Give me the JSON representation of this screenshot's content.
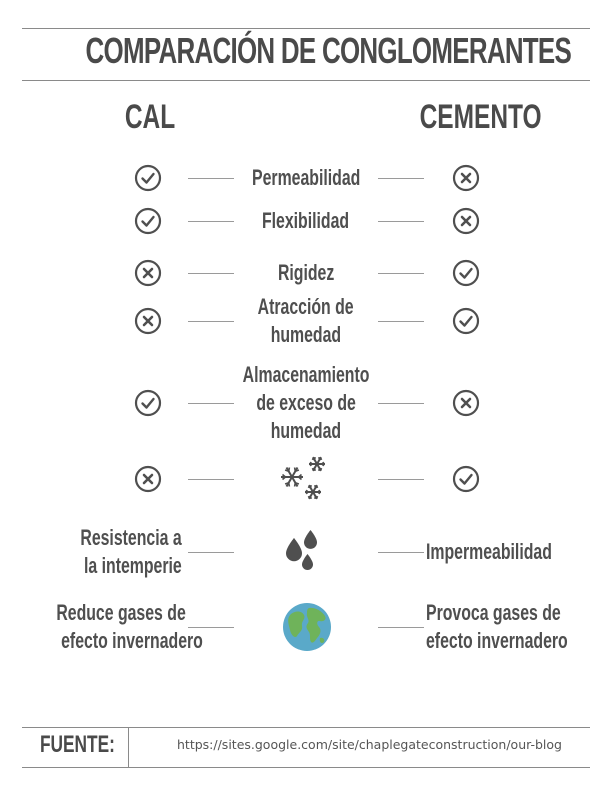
{
  "title": "COMPARACIÓN DE CONGLOMERANTES",
  "columns": {
    "left": "CAL",
    "right": "CEMENTO"
  },
  "rows": [
    {
      "label": "Permeabilidad",
      "cal": "check",
      "cemento": "cross"
    },
    {
      "label": "Flexibilidad",
      "cal": "check",
      "cemento": "cross"
    },
    {
      "label": "Rigidez",
      "cal": "cross",
      "cemento": "check"
    },
    {
      "label": "Atracción de humedad",
      "label_lines": [
        "Atracción de",
        "humedad"
      ],
      "cal": "cross",
      "cemento": "check"
    },
    {
      "label": "Almacenamiento de exceso de humedad",
      "label_lines": [
        "Almacenamiento",
        "de exceso de",
        "humedad"
      ],
      "cal": "check",
      "cemento": "cross"
    },
    {
      "icon": "snowflakes-icon",
      "cal": "cross",
      "cemento": "check"
    }
  ],
  "text_rows": [
    {
      "icon": "water-drops-icon",
      "cal_lines": [
        "Resistencia a",
        "la intemperie"
      ],
      "cemento_lines": [
        "Impermeabilidad"
      ]
    },
    {
      "icon": "earth-globe-icon",
      "cal_lines": [
        "Reduce gases de",
        "efecto invernadero"
      ],
      "cemento_lines": [
        "Provoca gases de",
        "efecto invernadero"
      ]
    }
  ],
  "footer": {
    "label": "FUENTE:",
    "url": "https://sites.google.com/site/chaplegateconstruction/our-blog"
  },
  "colors": {
    "ink": "#4f4f4f",
    "globe_water": "#5aa9c9",
    "globe_land": "#6fb35a"
  }
}
